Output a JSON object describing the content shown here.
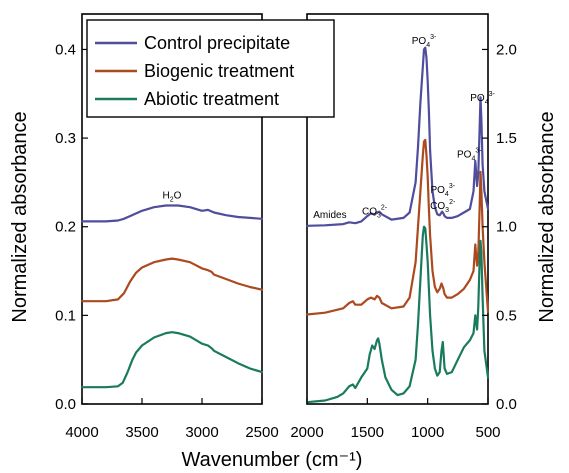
{
  "chart_data": {
    "type": "line",
    "xlabel": "Wavenumber (cm⁻¹)",
    "legend": {
      "placement": "top-left",
      "entries": [
        {
          "name": "Control precipitate",
          "color": "#4f4d9c"
        },
        {
          "name": "Biogenic treatment",
          "color": "#ab4a1f"
        },
        {
          "name": "Abiotic treatment",
          "color": "#1a7a5e"
        }
      ]
    },
    "panels": [
      {
        "id": "left",
        "xlim": [
          4000,
          2500
        ],
        "ylim": [
          0,
          0.44
        ],
        "ylabel": "Normalized absorbance",
        "yaxis_side": "left",
        "xticks": [
          "4000",
          "3500",
          "3000",
          "2500"
        ],
        "xtick_values": [
          4000,
          3500,
          3000,
          2500
        ],
        "yticks": [
          "0.0",
          "0.1",
          "0.2",
          "0.3",
          "0.4"
        ],
        "ytick_values": [
          0,
          0.1,
          0.2,
          0.3,
          0.4
        ],
        "annotations": [
          {
            "text": "H",
            "sub": "2",
            "post": "O",
            "x": 3250,
            "y": 0.232
          }
        ],
        "series": [
          {
            "name": "Control precipitate",
            "x": [
              4000,
              3800,
              3700,
              3650,
              3600,
              3500,
              3400,
              3300,
              3250,
              3200,
              3100,
              3000,
              2950,
              2900,
              2800,
              2700,
              2600,
              2500
            ],
            "y": [
              0.206,
              0.206,
              0.207,
              0.209,
              0.212,
              0.218,
              0.222,
              0.224,
              0.224,
              0.224,
              0.222,
              0.218,
              0.219,
              0.216,
              0.213,
              0.211,
              0.21,
              0.209
            ]
          },
          {
            "name": "Biogenic treatment",
            "x": [
              4000,
              3800,
              3700,
              3650,
              3600,
              3550,
              3500,
              3400,
              3300,
              3250,
              3200,
              3100,
              3000,
              2950,
              2920,
              2900,
              2800,
              2700,
              2600,
              2500
            ],
            "y": [
              0.116,
              0.116,
              0.118,
              0.125,
              0.138,
              0.148,
              0.154,
              0.16,
              0.163,
              0.164,
              0.163,
              0.16,
              0.153,
              0.151,
              0.149,
              0.146,
              0.141,
              0.136,
              0.132,
              0.129
            ]
          },
          {
            "name": "Abiotic treatment",
            "x": [
              4000,
              3800,
              3700,
              3660,
              3620,
              3580,
              3550,
              3500,
              3400,
              3300,
              3250,
              3200,
              3100,
              3000,
              2950,
              2920,
              2900,
              2800,
              2700,
              2600,
              2500
            ],
            "y": [
              0.019,
              0.019,
              0.02,
              0.024,
              0.036,
              0.05,
              0.058,
              0.066,
              0.075,
              0.08,
              0.081,
              0.08,
              0.076,
              0.068,
              0.066,
              0.063,
              0.06,
              0.053,
              0.046,
              0.04,
              0.036
            ]
          }
        ]
      },
      {
        "id": "right",
        "xlim": [
          2000,
          500
        ],
        "ylim": [
          0,
          2.2
        ],
        "ylabel": "Normalized absorbance",
        "yaxis_side": "right",
        "xticks": [
          "2000",
          "1500",
          "1000",
          "500"
        ],
        "xtick_values": [
          2000,
          1500,
          1000,
          500
        ],
        "yticks": [
          "0.0",
          "0.5",
          "1.0",
          "1.5",
          "2.0"
        ],
        "ytick_values": [
          0,
          0.5,
          1.0,
          1.5,
          2.0
        ],
        "annotations": [
          {
            "text": "Amides",
            "sub": "",
            "sup": "",
            "x": 1810,
            "y": 1.05
          },
          {
            "text": "CO",
            "sub": "3",
            "sup": "2-",
            "x": 1440,
            "y": 1.07
          },
          {
            "text": "PO",
            "sub": "4",
            "sup": "3-",
            "x": 1030,
            "y": 2.03
          },
          {
            "text": "PO",
            "sub": "4",
            "sup": "3-",
            "x": 875,
            "y": 1.19
          },
          {
            "text": "CO",
            "sub": "3",
            "sup": "2-",
            "x": 875,
            "y": 1.1
          },
          {
            "text": "PO",
            "sub": "4",
            "sup": "3-",
            "x": 655,
            "y": 1.39
          },
          {
            "text": "PO",
            "sub": "4",
            "sup": "3-",
            "x": 545,
            "y": 1.71
          }
        ],
        "series": [
          {
            "name": "Control precipitate",
            "x": [
              2000,
              1850,
              1700,
              1650,
              1600,
              1550,
              1500,
              1470,
              1440,
              1420,
              1400,
              1380,
              1300,
              1200,
              1150,
              1100,
              1080,
              1060,
              1040,
              1030,
              1020,
              1010,
              1000,
              990,
              980,
              960,
              940,
              920,
              900,
              880,
              870,
              860,
              840,
              800,
              750,
              700,
              650,
              620,
              605,
              590,
              580,
              570,
              562,
              555,
              545,
              530,
              500
            ],
            "y": [
              1.005,
              1.008,
              1.015,
              1.025,
              1.02,
              1.03,
              1.06,
              1.075,
              1.068,
              1.08,
              1.085,
              1.07,
              1.04,
              1.05,
              1.08,
              1.25,
              1.45,
              1.7,
              1.9,
              2.0,
              2.01,
              1.95,
              1.82,
              1.65,
              1.43,
              1.2,
              1.11,
              1.07,
              1.065,
              1.085,
              1.075,
              1.06,
              1.05,
              1.05,
              1.06,
              1.08,
              1.1,
              1.2,
              1.37,
              1.23,
              1.3,
              1.55,
              1.73,
              1.6,
              1.35,
              1.2,
              1.1
            ]
          },
          {
            "name": "Biogenic treatment",
            "x": [
              2000,
              1850,
              1700,
              1650,
              1620,
              1600,
              1550,
              1500,
              1470,
              1440,
              1420,
              1400,
              1380,
              1300,
              1200,
              1150,
              1100,
              1080,
              1060,
              1040,
              1030,
              1020,
              1010,
              1000,
              990,
              980,
              960,
              940,
              920,
              900,
              885,
              870,
              860,
              840,
              800,
              750,
              700,
              650,
              620,
              605,
              590,
              580,
              570,
              562,
              555,
              545,
              530,
              500
            ],
            "y": [
              0.505,
              0.515,
              0.54,
              0.57,
              0.58,
              0.56,
              0.56,
              0.59,
              0.6,
              0.59,
              0.61,
              0.6,
              0.57,
              0.54,
              0.55,
              0.6,
              0.8,
              1.0,
              1.2,
              1.4,
              1.48,
              1.49,
              1.4,
              1.28,
              1.1,
              0.95,
              0.75,
              0.66,
              0.63,
              0.65,
              0.68,
              0.65,
              0.62,
              0.6,
              0.6,
              0.62,
              0.65,
              0.7,
              0.75,
              0.9,
              0.78,
              0.85,
              1.1,
              1.31,
              1.2,
              1.0,
              0.8,
              0.52
            ]
          },
          {
            "name": "Abiotic treatment",
            "x": [
              2000,
              1850,
              1750,
              1700,
              1650,
              1620,
              1600,
              1550,
              1500,
              1480,
              1460,
              1440,
              1420,
              1410,
              1400,
              1380,
              1350,
              1300,
              1250,
              1200,
              1150,
              1100,
              1080,
              1060,
              1040,
              1030,
              1020,
              1010,
              1000,
              990,
              980,
              960,
              940,
              920,
              900,
              885,
              875,
              870,
              860,
              840,
              800,
              750,
              700,
              650,
              620,
              605,
              590,
              580,
              570,
              562,
              555,
              545,
              530,
              500
            ],
            "y": [
              0.01,
              0.02,
              0.04,
              0.06,
              0.1,
              0.11,
              0.09,
              0.15,
              0.2,
              0.28,
              0.33,
              0.31,
              0.36,
              0.37,
              0.34,
              0.25,
              0.15,
              0.08,
              0.05,
              0.06,
              0.1,
              0.25,
              0.45,
              0.7,
              0.95,
              1.0,
              0.99,
              0.9,
              0.8,
              0.65,
              0.5,
              0.3,
              0.2,
              0.16,
              0.18,
              0.3,
              0.35,
              0.3,
              0.2,
              0.17,
              0.18,
              0.25,
              0.32,
              0.36,
              0.4,
              0.5,
              0.42,
              0.55,
              0.8,
              0.92,
              0.85,
              0.6,
              0.3,
              0.15
            ]
          }
        ]
      }
    ]
  }
}
